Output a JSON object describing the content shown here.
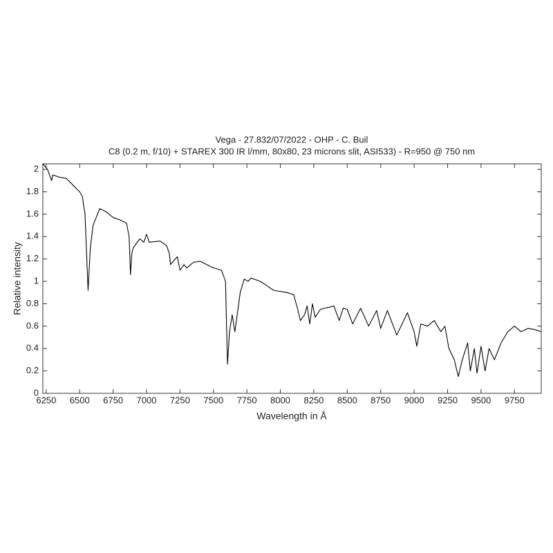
{
  "chart_data": {
    "type": "line",
    "title": "Vega - 27.832/07/2022 - OHP - C. Buil",
    "subtitle": "C8 (0.2 m, f/10) + STAREX 300 IR l/mm, 80x80, 23 microns slit, ASI533) - R=950 @ 750 nm",
    "xlabel": "Wavelength in Å",
    "ylabel": "Relative intensity",
    "color": "#000000",
    "xlim": [
      6225,
      9950
    ],
    "ylim": [
      0,
      2.05
    ],
    "xticks": [
      6250,
      6500,
      6750,
      7000,
      7250,
      7500,
      7750,
      8000,
      8250,
      8500,
      8750,
      9000,
      9250,
      9500,
      9750
    ],
    "yticks": [
      0,
      0.2,
      0.4,
      0.6,
      0.8,
      1,
      1.2,
      1.4,
      1.6,
      1.8,
      2
    ],
    "grid": false,
    "x": [
      6225,
      6260,
      6290,
      6300,
      6350,
      6400,
      6450,
      6500,
      6520,
      6540,
      6563,
      6580,
      6600,
      6650,
      6700,
      6750,
      6800,
      6850,
      6870,
      6880,
      6890,
      6900,
      6950,
      6980,
      7000,
      7020,
      7100,
      7150,
      7170,
      7180,
      7200,
      7230,
      7250,
      7280,
      7300,
      7350,
      7400,
      7450,
      7500,
      7560,
      7590,
      7605,
      7620,
      7640,
      7660,
      7700,
      7730,
      7760,
      7780,
      7850,
      7950,
      8050,
      8100,
      8130,
      8150,
      8180,
      8200,
      8220,
      8240,
      8260,
      8300,
      8400,
      8440,
      8470,
      8500,
      8540,
      8600,
      8660,
      8720,
      8750,
      8800,
      8870,
      8950,
      9000,
      9020,
      9050,
      9100,
      9150,
      9200,
      9230,
      9260,
      9300,
      9330,
      9360,
      9400,
      9420,
      9450,
      9470,
      9500,
      9530,
      9560,
      9600,
      9650,
      9700,
      9750,
      9800,
      9850,
      9900,
      9950
    ],
    "values": [
      2.05,
      2.0,
      1.9,
      1.95,
      1.93,
      1.92,
      1.86,
      1.8,
      1.76,
      1.6,
      0.92,
      1.3,
      1.5,
      1.65,
      1.62,
      1.57,
      1.55,
      1.52,
      1.4,
      1.06,
      1.25,
      1.3,
      1.38,
      1.35,
      1.42,
      1.35,
      1.36,
      1.32,
      1.25,
      1.15,
      1.18,
      1.22,
      1.1,
      1.15,
      1.12,
      1.17,
      1.18,
      1.15,
      1.12,
      1.1,
      1.0,
      0.26,
      0.55,
      0.7,
      0.55,
      0.9,
      1.02,
      1.0,
      1.03,
      1.0,
      0.92,
      0.9,
      0.88,
      0.75,
      0.65,
      0.7,
      0.78,
      0.62,
      0.8,
      0.68,
      0.75,
      0.78,
      0.65,
      0.76,
      0.75,
      0.62,
      0.76,
      0.6,
      0.74,
      0.58,
      0.74,
      0.52,
      0.72,
      0.55,
      0.42,
      0.62,
      0.6,
      0.65,
      0.55,
      0.6,
      0.4,
      0.3,
      0.15,
      0.3,
      0.45,
      0.2,
      0.4,
      0.18,
      0.42,
      0.2,
      0.4,
      0.3,
      0.45,
      0.55,
      0.6,
      0.55,
      0.58,
      0.57,
      0.55
    ]
  }
}
